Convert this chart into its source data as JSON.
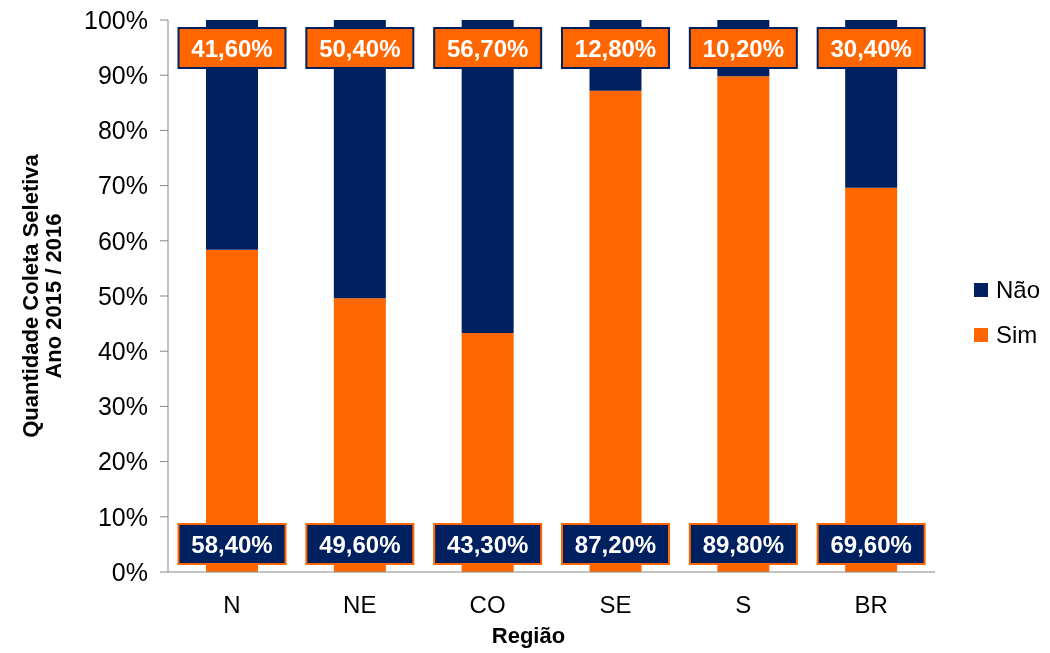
{
  "chart_data": {
    "type": "bar",
    "stacked": true,
    "categories": [
      "N",
      "NE",
      "CO",
      "SE",
      "S",
      "BR"
    ],
    "series": [
      {
        "name": "Sim",
        "color": "#ff6600",
        "values": [
          58.4,
          49.6,
          43.3,
          87.2,
          89.8,
          69.6
        ],
        "value_labels": [
          "58,40%",
          "49,60%",
          "43,30%",
          "87,20%",
          "89,80%",
          "69,60%"
        ]
      },
      {
        "name": "Não",
        "color": "#002060",
        "values": [
          41.6,
          50.4,
          56.7,
          12.8,
          10.2,
          30.4
        ],
        "value_labels": [
          "41,60%",
          "50,40%",
          "56,70%",
          "12,80%",
          "10,20%",
          "30,40%"
        ]
      }
    ],
    "ylim": [
      0,
      100
    ],
    "yticks": [
      {
        "value": 0,
        "label": "0%"
      },
      {
        "value": 10,
        "label": "10%"
      },
      {
        "value": 20,
        "label": "20%"
      },
      {
        "value": 30,
        "label": "30%"
      },
      {
        "value": 40,
        "label": "40%"
      },
      {
        "value": 50,
        "label": "50%"
      },
      {
        "value": 60,
        "label": "60%"
      },
      {
        "value": 70,
        "label": "70%"
      },
      {
        "value": 80,
        "label": "80%"
      },
      {
        "value": 90,
        "label": "90%"
      },
      {
        "value": 100,
        "label": "100%"
      }
    ],
    "xlabel": "Região",
    "ylabel": "Quantidade Coleta Seletiva\nAno 2015 / 2016",
    "legend": "right"
  }
}
